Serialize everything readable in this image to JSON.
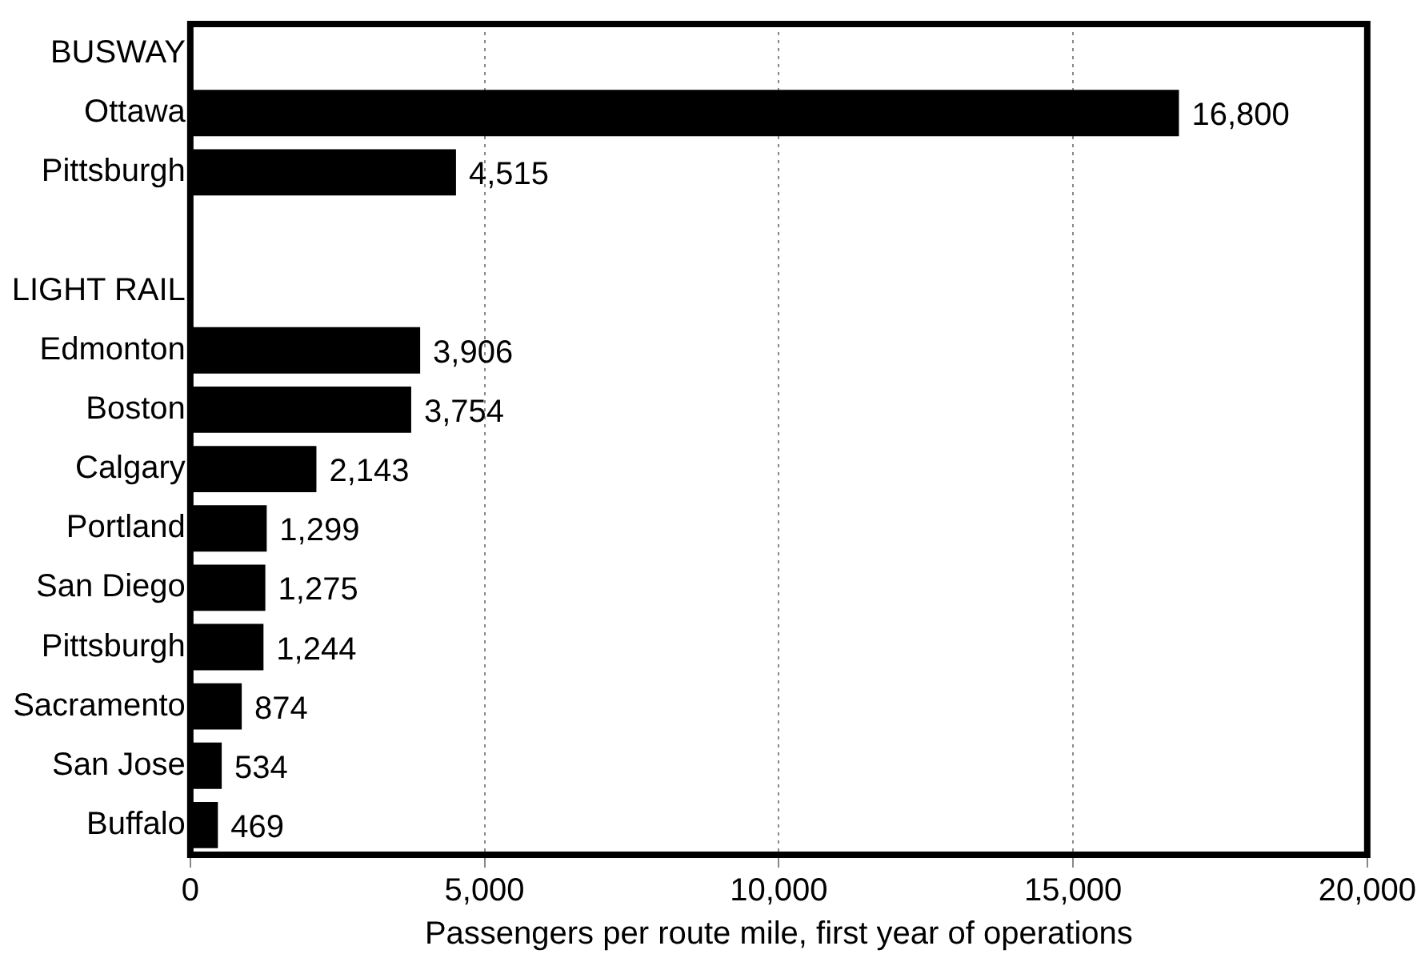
{
  "chart_data": {
    "type": "bar",
    "orientation": "horizontal",
    "xlabel": "Passengers per route mile, first year of operations",
    "categories": [
      "BUSWAY",
      "Ottawa",
      "Pittsburgh",
      null,
      "LIGHT RAIL",
      "Edmonton",
      "Boston",
      "Calgary",
      "Portland",
      "San Diego",
      "Pittsburgh",
      "Sacramento",
      "San Jose",
      "Buffalo"
    ],
    "values": [
      null,
      16800,
      4515,
      null,
      null,
      3906,
      3754,
      2143,
      1299,
      1275,
      1244,
      874,
      534,
      469
    ],
    "value_labels": [
      null,
      "16,800",
      "4,515",
      null,
      null,
      "3,906",
      "3,754",
      "2,143",
      "1,299",
      "1,275",
      "1,244",
      "874",
      "534",
      "469"
    ],
    "color": "#000000",
    "xlim": [
      0,
      20000
    ],
    "xticks": [
      0,
      {
        "value": 5000,
        "label": "5,000"
      },
      {
        "value": 10000,
        "label": "10,000"
      },
      {
        "value": 15000,
        "label": "15,000"
      },
      {
        "value": 20000,
        "label": "20,000"
      }
    ],
    "grid": "x",
    "legend": false
  }
}
